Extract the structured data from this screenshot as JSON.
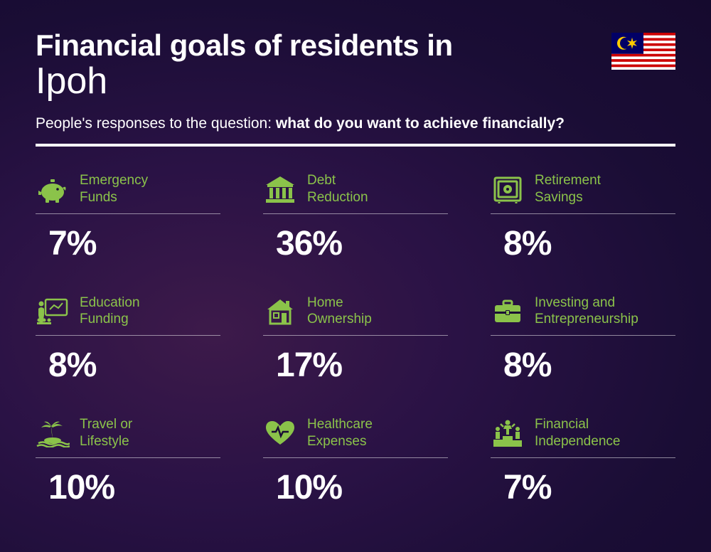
{
  "header": {
    "title_line1": "Financial goals of residents in",
    "title_line2": "Ipoh",
    "subtitle_prefix": "People's responses to the question: ",
    "subtitle_bold": "what do you want to achieve financially?"
  },
  "colors": {
    "accent": "#8BC34A",
    "text": "#ffffff",
    "divider": "#ffffff"
  },
  "flag": {
    "stripe_red": "#CC0001",
    "stripe_white": "#ffffff",
    "canton": "#010066",
    "emblem": "#FFCC00"
  },
  "items": [
    {
      "label": "Emergency\nFunds",
      "value": "7%",
      "icon": "piggy-bank-icon"
    },
    {
      "label": "Debt\nReduction",
      "value": "36%",
      "icon": "bank-icon"
    },
    {
      "label": "Retirement\nSavings",
      "value": "8%",
      "icon": "safe-icon"
    },
    {
      "label": "Education\nFunding",
      "value": "8%",
      "icon": "presentation-icon"
    },
    {
      "label": "Home\nOwnership",
      "value": "17%",
      "icon": "house-icon"
    },
    {
      "label": "Investing and\nEntrepreneurship",
      "value": "8%",
      "icon": "briefcase-icon"
    },
    {
      "label": "Travel or\nLifestyle",
      "value": "10%",
      "icon": "island-icon"
    },
    {
      "label": "Healthcare\nExpenses",
      "value": "10%",
      "icon": "heart-pulse-icon"
    },
    {
      "label": "Financial\nIndependence",
      "value": "7%",
      "icon": "podium-icon"
    }
  ],
  "typography": {
    "title_line1_size": 42,
    "title_line2_size": 52,
    "subtitle_size": 21,
    "label_size": 19,
    "value_size": 48
  }
}
